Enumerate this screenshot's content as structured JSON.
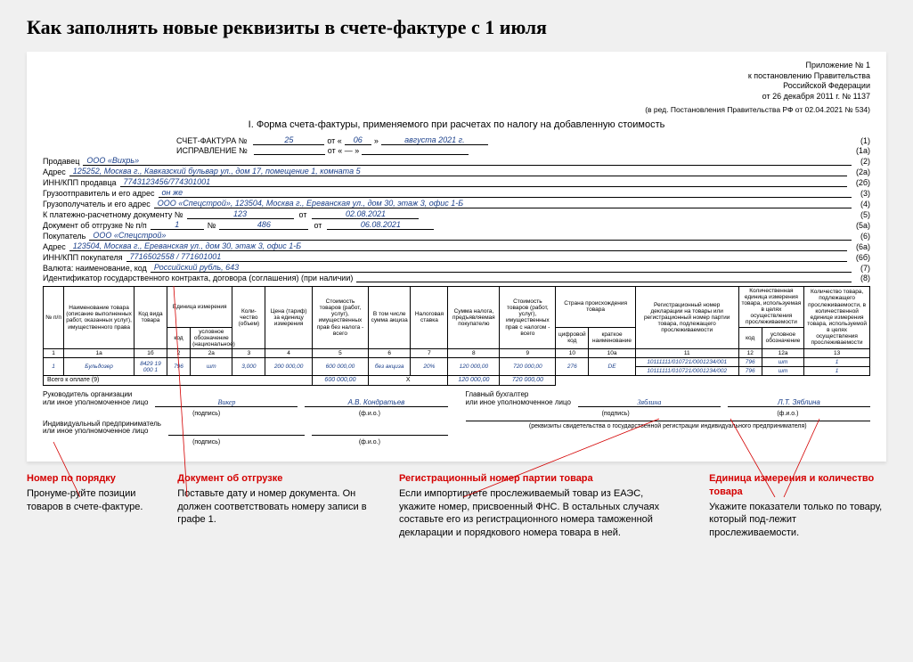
{
  "page_title": "Как заполнять новые реквизиты в счете-фактуре с 1 июля",
  "appendix": {
    "l1": "Приложение № 1",
    "l2": "к постановлению Правительства",
    "l3": "Российской Федерации",
    "l4": "от 26 декабря 2011 г. № 1137",
    "rev": "(в ред. Постановления Правительства РФ от 02.04.2021 № 534)"
  },
  "form_title": "I. Форма счета-фактуры, применяемого при расчетах по налогу на добавленную стоимость",
  "header": {
    "invoice_label": "СЧЕТ-ФАКТУРА  №",
    "invoice_num": "25",
    "ot": "от «",
    "day": "06",
    "month_year": "августа 2021 г.",
    "correction_label": "ИСПРАВЛЕНИЕ  №",
    "line_1": "(1)",
    "line_1a": "(1а)",
    "seller_lbl": "Продавец",
    "seller_val": "ООО «Вихрь»",
    "seller_n": "(2)",
    "addr_lbl": "Адрес",
    "addr_val": "125252, Москва г., Кавказский бульвар ул., дом 17, помещение 1, комната 5",
    "addr_n": "(2а)",
    "inn_s_lbl": "ИНН/КПП продавца",
    "inn_s_val": "7743123456/774301001",
    "inn_s_n": "(2б)",
    "shipper_lbl": "Грузоотправитель и его адрес",
    "shipper_val": "он же",
    "shipper_n": "(3)",
    "consignee_lbl": "Грузополучатель и его адрес",
    "consignee_val": "ООО «Спецстрой», 123504, Москва г., Ереванская ул., дом 30, этаж 3, офис 1-Б",
    "consignee_n": "(4)",
    "paydoc_lbl": "К платежно-расчетному документу №",
    "paydoc_num": "123",
    "paydoc_ot": "от",
    "paydoc_date": "02.08.2021",
    "paydoc_n": "(5)",
    "shipdoc_lbl": "Документ об отгрузке № п/п",
    "shipdoc_pp": "1",
    "shipdoc_numl": "№",
    "shipdoc_num": "486",
    "shipdoc_ot": "от",
    "shipdoc_date": "06.08.2021",
    "shipdoc_n": "(5а)",
    "buyer_lbl": "Покупатель",
    "buyer_val": "ООО «Спецстрой»",
    "buyer_n": "(6)",
    "baddr_lbl": "Адрес",
    "baddr_val": "123504, Москва г., Ереванская ул., дом 30, этаж 3, офис 1-Б",
    "baddr_n": "(6а)",
    "binn_lbl": "ИНН/КПП покупателя",
    "binn_val": "7716502558 / 771601001",
    "binn_n": "(6б)",
    "curr_lbl": "Валюта: наименование, код",
    "curr_val": "Российский рубль, 643",
    "curr_n": "(7)",
    "gov_lbl": "Идентификатор государственного контракта, договора (соглашения) (при наличии)",
    "gov_n": "(8)"
  },
  "table": {
    "h": {
      "c1": "№ п/п",
      "c1a": "Наименование товара (описание выполненных работ, оказанных услуг), имущественного права",
      "c1b": "Код вида товара",
      "c2": "Единица измерения",
      "c2k": "код",
      "c2u": "условное обозначение (национальное)",
      "c3": "Коли-чество (объем)",
      "c4": "Цена (тариф) за единицу измерения",
      "c5": "Стоимость товаров (работ, услуг), имущественных прав без налога - всего",
      "c6": "В том числе сумма акциза",
      "c7": "Налоговая ставка",
      "c8": "Сумма налога, предъявляемая покупателю",
      "c9": "Стоимость товаров (работ, услуг), имущественных прав с налогом - всего",
      "c10": "Страна происхождения товара",
      "c10k": "цифровой код",
      "c10n": "краткое наименование",
      "c11": "Регистрационный номер декларации на товары или регистрационный номер партии товара, подлежащего прослеживаемости",
      "c12": "Количественная единица измерения товара, используемая в целях осуществления прослеживаемости",
      "c12k": "код",
      "c12u": "условное обозначение",
      "c13": "Количество товара, подлежащего прослеживаемости, в количественной единице измерения товара, используемой в целях осуществления прослеживаемости"
    },
    "nums": [
      "1",
      "1а",
      "1б",
      "2",
      "2а",
      "3",
      "4",
      "5",
      "6",
      "7",
      "8",
      "9",
      "10",
      "10а",
      "11",
      "12",
      "12а",
      "13"
    ],
    "row": {
      "n": "1",
      "name": "Бульдозер",
      "code": "8429 19 000 1",
      "uk": "796",
      "uu": "шт",
      "qty": "3,000",
      "price": "200 000,00",
      "sum": "600 000,00",
      "excise": "без акциза",
      "rate": "20%",
      "tax": "120 000,00",
      "total": "720 000,00",
      "cc": "276",
      "cn": "DE",
      "reg1": "10111111/010721/0001234/001",
      "reg2": "10111111/010721/0001234/002",
      "uk2": "796",
      "uu2": "шт",
      "q13": "1"
    },
    "totals_lbl": "Всего к оплате (9)",
    "t5": "600 000,00",
    "tX": "X",
    "t8": "120 000,00",
    "t9": "720 000,00"
  },
  "sig": {
    "l1": "Руководитель организации",
    "l1b": "или иное уполномоченное лицо",
    "s1": "Викер",
    "n1": "А.В. Кондратьев",
    "l2": "Главный бухгалтер",
    "l2b": "или иное уполномоченное лицо",
    "s2": "Зяблина",
    "n2": "Л.Т. Зяблина",
    "l3": "Индивидуальный предприниматель",
    "l3b": "или иное уполномоченное лицо",
    "sub_p": "(подпись)",
    "sub_f": "(ф.и.о.)",
    "reg_note": "(реквизиты свидетельства о государственной регистрации индивидуального предпринимателя)"
  },
  "annotations": [
    {
      "title": "Номер по порядку",
      "body": "Пронуме-руйте позиции товаров в счете-фактуре."
    },
    {
      "title": "Документ об отгрузке",
      "body": "Поставьте дату и номер документа. Он должен соответствовать номеру записи в графе 1."
    },
    {
      "title": "Регистрационный номер партии товара",
      "body": "Если импортируете прослеживаемый товар из ЕАЭС, укажите номер, присвоенный ФНС. В остальных случаях составьте его из регистрационного номера таможенной декларации и порядкового номера товара в ней."
    },
    {
      "title": "Единица измерения и количество товара",
      "body": "Укажите показатели только по товару, который под-лежит прослеживаемости."
    }
  ],
  "colors": {
    "blue": "#1a3f8a",
    "red": "#d40000",
    "bg": "#f0f0f0"
  }
}
